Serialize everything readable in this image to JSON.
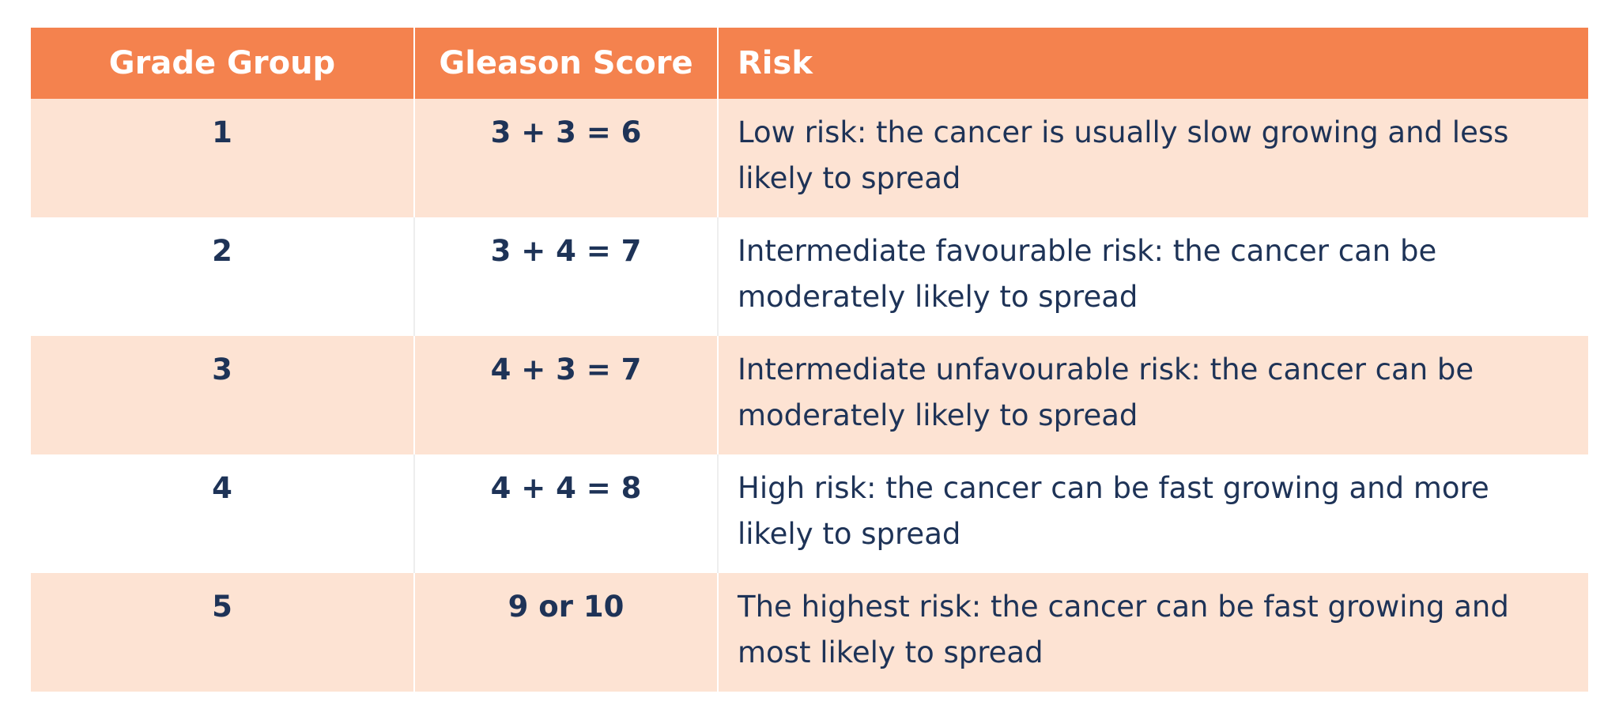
{
  "table": {
    "headers": [
      "Grade Group",
      "Gleason Score",
      "Risk"
    ],
    "rows": [
      [
        "1",
        "3 + 3 = 6",
        "Low risk: the cancer is usually slow growing and less likely to spread"
      ],
      [
        "2",
        "3 + 4 = 7",
        "Intermediate favourable risk: the cancer can be moderately likely to spread"
      ],
      [
        "3",
        "4 + 3 = 7",
        "Intermediate unfavourable risk: the cancer can be moderately likely to spread"
      ],
      [
        "4",
        "4 + 4 = 8",
        "High risk: the cancer can be fast growing and more likely to spread"
      ],
      [
        "5",
        "9 or 10",
        "The highest risk: the cancer can be fast growing and most likely to spread"
      ]
    ]
  }
}
